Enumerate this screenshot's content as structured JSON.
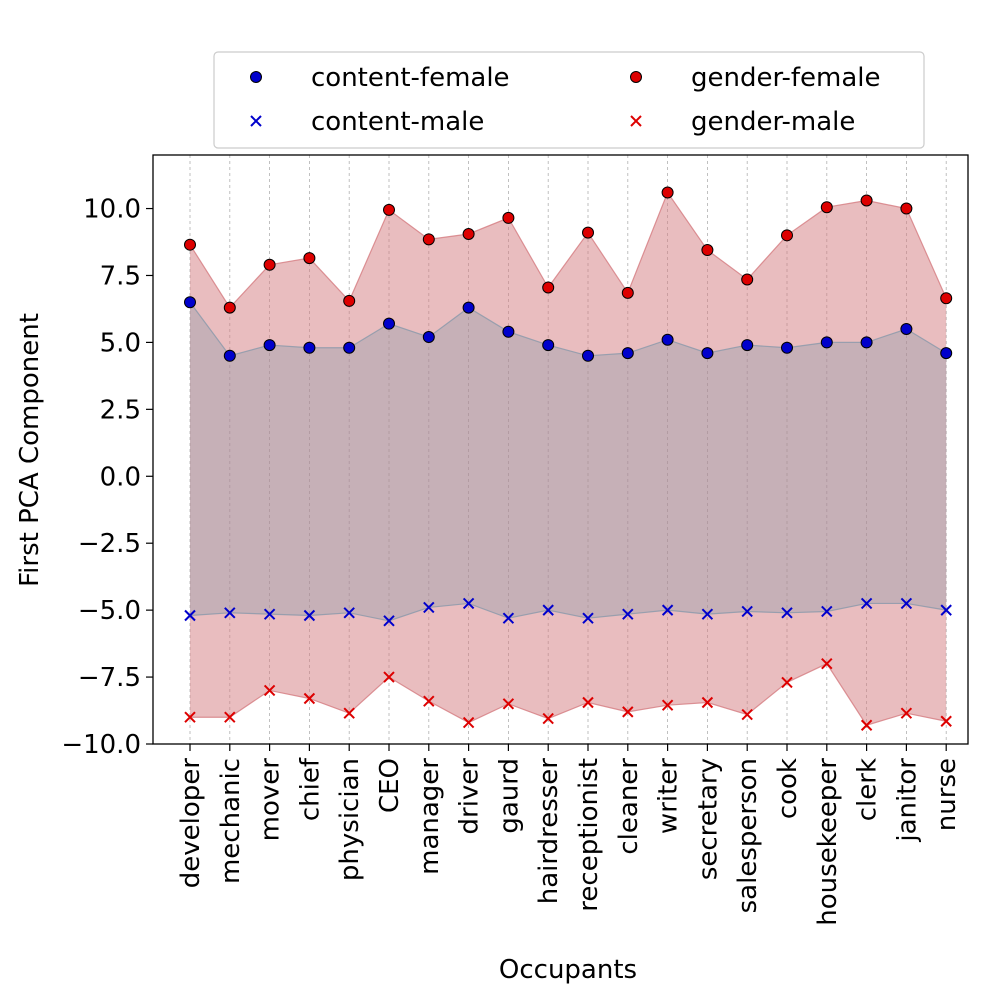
{
  "chart_data": {
    "type": "area",
    "xlabel": "Occupants",
    "ylabel": "First PCA Component",
    "ylim": [
      -10,
      12
    ],
    "yticks": [
      10.0,
      7.5,
      5.0,
      2.5,
      0.0,
      -2.5,
      -5.0,
      -7.5,
      -10.0
    ],
    "ytick_labels": [
      "10.0",
      "7.5",
      "5.0",
      "2.5",
      "0.0",
      "−2.5",
      "−5.0",
      "−7.5",
      "−10.0"
    ],
    "grid": "vertical dashed",
    "legend_position": "top-center",
    "categories": [
      "developer",
      "mechanic",
      "mover",
      "chief",
      "physician",
      "CEO",
      "manager",
      "driver",
      "gaurd",
      "hairdresser",
      "receptionist",
      "cleaner",
      "writer",
      "secretary",
      "salesperson",
      "cook",
      "housekeeper",
      "clerk",
      "janitor",
      "nurse"
    ],
    "series": [
      {
        "name": "content-female",
        "marker": "circle",
        "color": "#0000cc",
        "values": [
          6.5,
          4.5,
          4.9,
          4.8,
          4.8,
          5.7,
          5.2,
          6.3,
          5.4,
          4.9,
          4.5,
          4.6,
          5.1,
          4.6,
          4.9,
          4.8,
          5.0,
          5.0,
          5.5,
          4.6
        ]
      },
      {
        "name": "content-male",
        "marker": "x",
        "color": "#0000cc",
        "values": [
          -5.2,
          -5.1,
          -5.15,
          -5.2,
          -5.1,
          -5.4,
          -4.9,
          -4.75,
          -5.3,
          -5.0,
          -5.3,
          -5.15,
          -5.0,
          -5.15,
          -5.05,
          -5.1,
          -5.05,
          -4.75,
          -4.75,
          -5.0
        ]
      },
      {
        "name": "gender-female",
        "marker": "circle",
        "color": "#dd0000",
        "values": [
          8.65,
          6.3,
          7.9,
          8.15,
          6.55,
          9.95,
          8.85,
          9.05,
          9.65,
          7.05,
          9.1,
          6.85,
          10.6,
          8.45,
          7.35,
          9.0,
          10.05,
          10.3,
          10.0,
          6.65
        ]
      },
      {
        "name": "gender-male",
        "marker": "x",
        "color": "#dd0000",
        "values": [
          -9.0,
          -9.0,
          -8.0,
          -8.3,
          -8.85,
          -7.5,
          -8.4,
          -9.2,
          -8.5,
          -9.05,
          -8.45,
          -8.8,
          -8.55,
          -8.45,
          -8.9,
          -7.7,
          -7.0,
          -9.3,
          -8.85,
          -9.15
        ]
      }
    ],
    "bands": [
      {
        "lower": "gender-male",
        "upper": "gender-female",
        "color": "#d47b80",
        "opacity": 0.5
      },
      {
        "lower": "content-male",
        "upper": "content-female",
        "color": "#8899aa",
        "opacity": 0.35
      }
    ]
  }
}
